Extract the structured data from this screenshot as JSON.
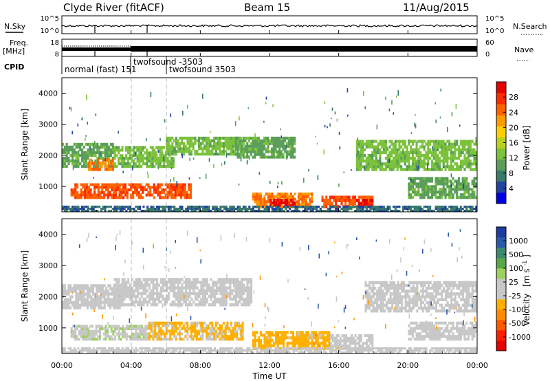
{
  "header": {
    "station": "Clyde River (fitACF)",
    "beam": "Beam 15",
    "date": "11/Aug/2015"
  },
  "panels": {
    "nsky": {
      "left_label": "N.Sky",
      "right_label": "N.Search",
      "y_ticks_left": [
        "10^5",
        "10^0"
      ],
      "y_ticks_right": [
        "10^5",
        "10^0"
      ]
    },
    "freq": {
      "left_label_1": "Freq.",
      "left_label_2": "[MHz]",
      "y_ticks_left": [
        "18",
        "8"
      ],
      "y_ticks_right": [
        "60",
        "0"
      ],
      "right_label": "Nave"
    },
    "cpid": {
      "label": "CPID",
      "modes": [
        "normal (fast) 151",
        "twofsound -3503",
        "twofsound 3503"
      ]
    }
  },
  "colorbars": {
    "power": {
      "title": "Power [dB]",
      "ticks": [
        "28",
        "24",
        "20",
        "16",
        "12",
        "8",
        "4"
      ],
      "colors": [
        "#0000e6",
        "#2244a0",
        "#3a7a6a",
        "#5a9e5a",
        "#7cc23c",
        "#b8d01e",
        "#ffd000",
        "#ff9a00",
        "#ff6000",
        "#ff2a00",
        "#e60000"
      ]
    },
    "velocity": {
      "title_main": "Velocity",
      "title_unit": "[m s",
      "title_exp": "-1",
      "title_close": "]",
      "ticks": [
        "1000",
        "500",
        "100",
        "25",
        "-25",
        "-100",
        "-500",
        "-1000"
      ],
      "colors": [
        "#1e3ca0",
        "#2a5aa8",
        "#3a8a70",
        "#56a848",
        "#9ed060",
        "#c8c8c8",
        "#c8c8c8",
        "#ffb000",
        "#ff8c00",
        "#ff5a00",
        "#ff1e00",
        "#e60000"
      ]
    }
  },
  "axes": {
    "ylabel": "Slant Range [km]",
    "xlabel": "Time UT",
    "y_ticks": [
      "4000",
      "3000",
      "2000",
      "1000"
    ],
    "x_ticks": [
      "00:00",
      "04:00",
      "08:00",
      "12:00",
      "16:00",
      "20:00",
      "00:00"
    ]
  },
  "chart_data": [
    {
      "type": "heatmap",
      "title": "Power [dB]",
      "xlabel": "Time UT",
      "ylabel": "Slant Range [km]",
      "xlim": [
        0,
        24
      ],
      "ylim": [
        180,
        4500
      ],
      "value_range": [
        0,
        30
      ],
      "bands": [
        {
          "t0": 0.0,
          "t1": 3.0,
          "r0": 1600,
          "r1": 2400,
          "value": 10
        },
        {
          "t0": 1.5,
          "t1": 3.0,
          "r0": 1500,
          "r1": 1900,
          "value": 22
        },
        {
          "t0": 0.5,
          "t1": 7.5,
          "r0": 600,
          "r1": 1100,
          "value": 24
        },
        {
          "t0": 3.0,
          "t1": 6.5,
          "r0": 1600,
          "r1": 2300,
          "value": 12
        },
        {
          "t0": 6.0,
          "t1": 10.5,
          "r0": 2000,
          "r1": 2600,
          "value": 12
        },
        {
          "t0": 10.0,
          "t1": 13.5,
          "r0": 1900,
          "r1": 2600,
          "value": 10
        },
        {
          "t0": 11.0,
          "t1": 14.5,
          "r0": 300,
          "r1": 800,
          "value": 22
        },
        {
          "t0": 12.0,
          "t1": 13.5,
          "r0": 350,
          "r1": 600,
          "value": 28
        },
        {
          "t0": 15.0,
          "t1": 18.0,
          "r0": 300,
          "r1": 700,
          "value": 24
        },
        {
          "t0": 17.0,
          "t1": 18.0,
          "r0": 300,
          "r1": 600,
          "value": 28
        },
        {
          "t0": 17.0,
          "t1": 24.0,
          "r0": 1500,
          "r1": 2500,
          "value": 12
        },
        {
          "t0": 20.0,
          "t1": 24.0,
          "r0": 600,
          "r1": 1300,
          "value": 10
        },
        {
          "t0": 0.0,
          "t1": 24.0,
          "r0": 180,
          "r1": 380,
          "value": 6
        }
      ]
    },
    {
      "type": "heatmap",
      "title": "Velocity [m s-1]",
      "xlabel": "Time UT",
      "ylabel": "Slant Range [km]",
      "xlim": [
        0,
        24
      ],
      "ylim": [
        180,
        4500
      ],
      "value_range": [
        -1000,
        1000
      ],
      "bands": [
        {
          "t0": 0.0,
          "t1": 3.5,
          "r0": 1600,
          "r1": 2400,
          "value": 0
        },
        {
          "t0": 0.5,
          "t1": 5.0,
          "r0": 600,
          "r1": 1100,
          "value": 120
        },
        {
          "t0": 5.0,
          "t1": 10.5,
          "r0": 600,
          "r1": 1200,
          "value": -200
        },
        {
          "t0": 3.0,
          "t1": 11.0,
          "r0": 1700,
          "r1": 2600,
          "value": 0
        },
        {
          "t0": 11.0,
          "t1": 15.5,
          "r0": 300,
          "r1": 900,
          "value": -250
        },
        {
          "t0": 15.5,
          "t1": 18.0,
          "r0": 300,
          "r1": 800,
          "value": -60
        },
        {
          "t0": 17.5,
          "t1": 24.0,
          "r0": 1500,
          "r1": 2500,
          "value": 0
        },
        {
          "t0": 20.0,
          "t1": 24.0,
          "r0": 600,
          "r1": 1200,
          "value": 0
        },
        {
          "t0": 0.0,
          "t1": 24.0,
          "r0": 180,
          "r1": 380,
          "value": -80
        }
      ]
    }
  ]
}
